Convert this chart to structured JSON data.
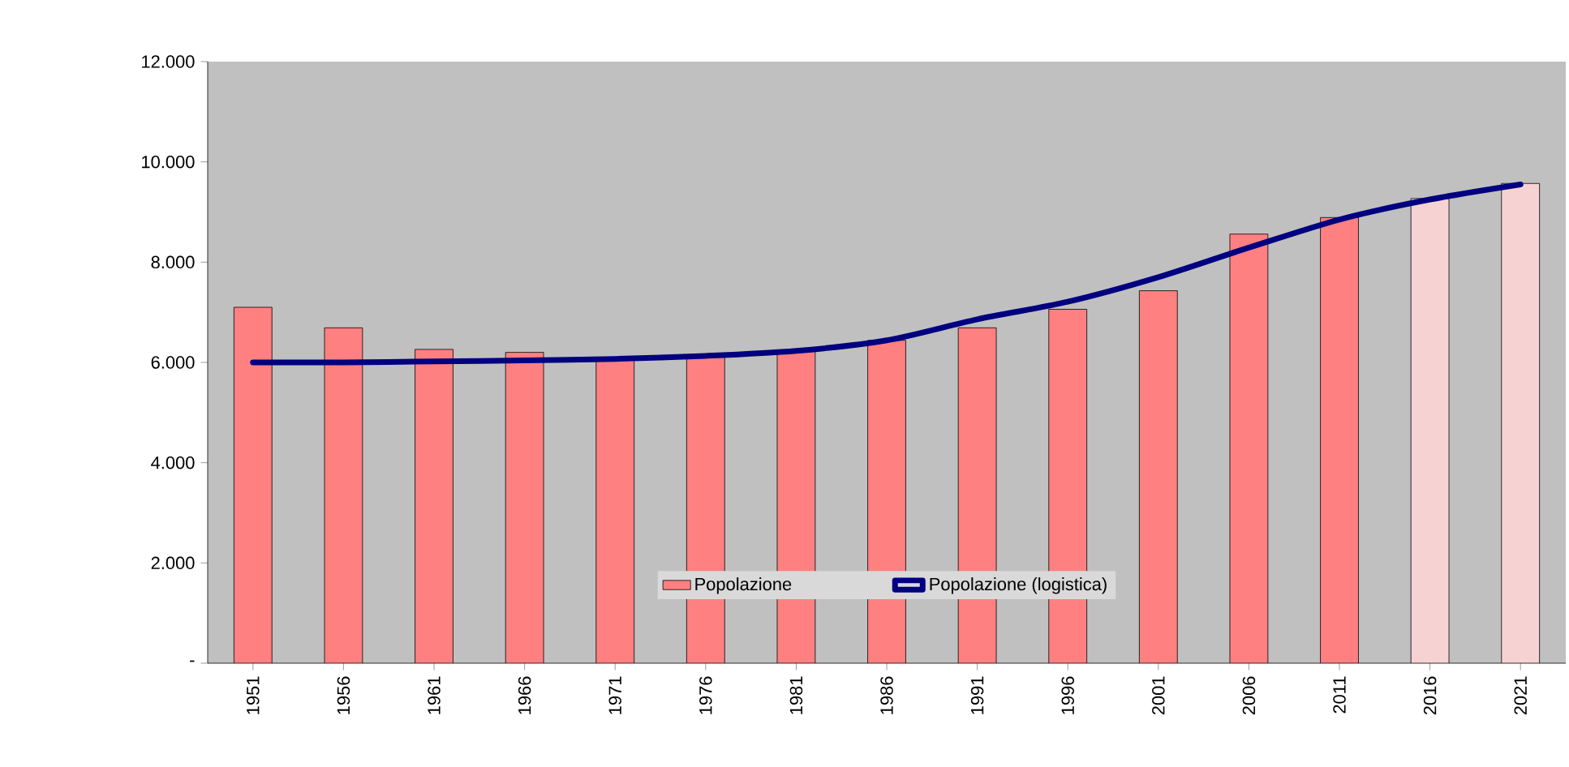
{
  "chart_data": {
    "type": "bar",
    "categories": [
      "1951",
      "1956",
      "1961",
      "1966",
      "1971",
      "1976",
      "1981",
      "1986",
      "1991",
      "1996",
      "2001",
      "2006",
      "2011",
      "2016",
      "2021"
    ],
    "series": [
      {
        "name": "Popolazione",
        "colors": [
          "#ff8080",
          "#ff8080",
          "#ff8080",
          "#ff8080",
          "#ff8080",
          "#ff8080",
          "#ff8080",
          "#ff8080",
          "#ff8080",
          "#ff8080",
          "#ff8080",
          "#ff8080",
          "#ff8080",
          "#f6d2d2",
          "#f6d2d2"
        ],
        "values": [
          7100,
          6690,
          6260,
          6200,
          6080,
          6150,
          6230,
          6440,
          6690,
          7060,
          7430,
          8560,
          8890,
          9270,
          9570
        ]
      },
      {
        "name": "Popolazione (logistica)",
        "type": "line",
        "color": "#000080",
        "line_style": "solid",
        "marker": "none",
        "values": [
          6000,
          6000,
          6020,
          6040,
          6070,
          6130,
          6230,
          6440,
          6860,
          7210,
          7700,
          8290,
          8850,
          9250,
          9550
        ]
      }
    ],
    "ylim": [
      0,
      12000
    ],
    "yticks": [
      {
        "value": 0,
        "label": "-"
      },
      {
        "value": 2000,
        "label": "2.000"
      },
      {
        "value": 4000,
        "label": "4.000"
      },
      {
        "value": 6000,
        "label": "6.000"
      },
      {
        "value": 8000,
        "label": "8.000"
      },
      {
        "value": 10000,
        "label": "10.000"
      },
      {
        "value": 12000,
        "label": "12.000"
      }
    ],
    "grid": false,
    "legend": "bottom"
  }
}
